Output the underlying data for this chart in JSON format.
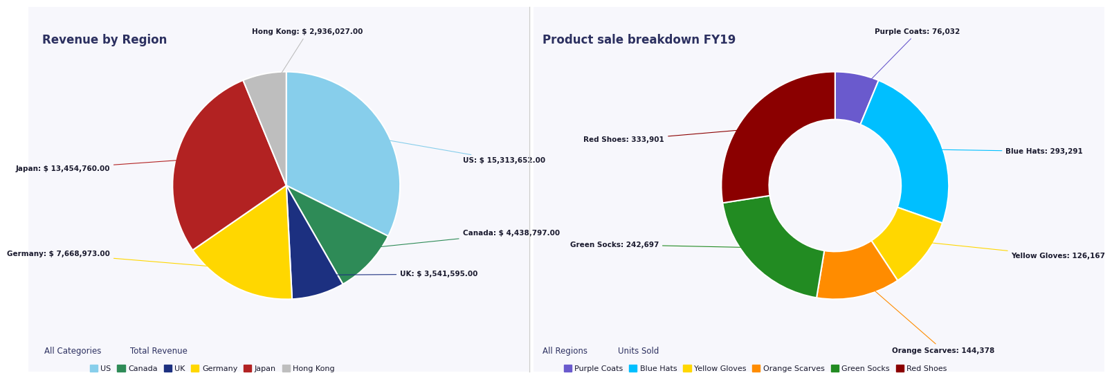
{
  "pie_title": "Revenue by Region",
  "pie_labels": [
    "US",
    "Canada",
    "UK",
    "Germany",
    "Japan",
    "Hong Kong"
  ],
  "pie_values": [
    15313652,
    4438797,
    3541595,
    7668973,
    13454760,
    2936027
  ],
  "pie_colors": [
    "#87CEEB",
    "#2E8B57",
    "#1C3080",
    "#FFD700",
    "#B22222",
    "#BEBEBE"
  ],
  "pie_label_texts": [
    "US: $ 15,313,652.00",
    "Canada: $ 4,438,797.00",
    "UK: $ 3,541,595.00",
    "Germany: $ 7,668,973.00",
    "Japan: $ 13,454,760.00",
    "Hong Kong: $ 2,936,027.00"
  ],
  "pie_legend_labels": [
    "US",
    "Canada",
    "UK",
    "Germany",
    "Japan",
    "Hong Kong"
  ],
  "pie_legend_colors": [
    "#87CEEB",
    "#2E8B57",
    "#1C3080",
    "#FFD700",
    "#B22222",
    "#BEBEBE"
  ],
  "pie_footer_left": "All Categories",
  "pie_footer_right": "Total Revenue",
  "donut_title": "Product sale breakdown FY19",
  "donut_labels": [
    "Purple Coats",
    "Blue Hats",
    "Yellow Gloves",
    "Orange Scarves",
    "Green Socks",
    "Red Shoes"
  ],
  "donut_values": [
    76032,
    293291,
    126167,
    144378,
    242697,
    333901
  ],
  "donut_colors": [
    "#6A5ACD",
    "#00BFFF",
    "#FFD700",
    "#FF8C00",
    "#228B22",
    "#8B0000"
  ],
  "donut_label_texts": [
    "Purple Coats: 76,032",
    "Blue Hats: 293,291",
    "Yellow Gloves: 126,167",
    "Orange Scarves: 144,378",
    "Green Socks: 242,697",
    "Red Shoes: 333,901"
  ],
  "donut_legend_labels": [
    "Purple Coats",
    "Blue Hats",
    "Yellow Gloves",
    "Orange Scarves",
    "Green Socks",
    "Red Shoes"
  ],
  "donut_legend_colors": [
    "#6A5ACD",
    "#00BFFF",
    "#FFD700",
    "#FF8C00",
    "#228B22",
    "#8B0000"
  ],
  "donut_footer_left": "All Regions",
  "donut_footer_right": "Units Sold",
  "background_color": "#FFFFFF",
  "panel_bg": "#F7F7FC",
  "title_color": "#2C3060",
  "label_color": "#1A1A2E",
  "footer_color": "#2C3060",
  "divider_color": "#CCCCCC"
}
